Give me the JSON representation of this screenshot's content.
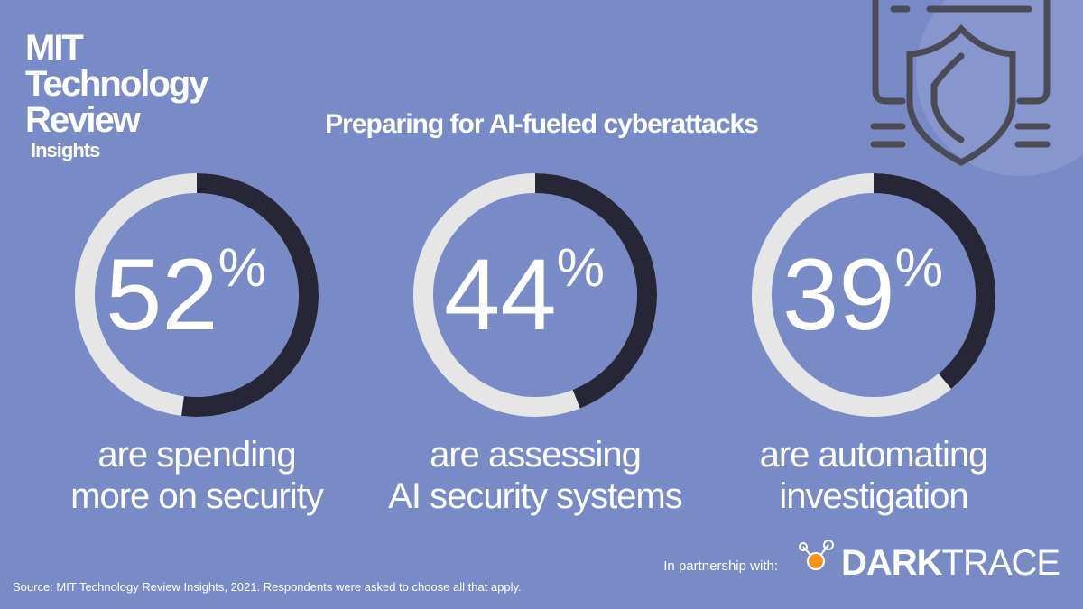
{
  "brand": {
    "lines": [
      "MIT",
      "Technology",
      "Review"
    ],
    "sub": "Insights"
  },
  "title": "Preparing for AI-fueled cyberattacks",
  "chart_data": [
    {
      "type": "donut",
      "values": [
        52
      ],
      "value_labels": [
        "52%"
      ],
      "color": "#262636",
      "track_color": "#e6e6e6",
      "caption": [
        "are spending",
        "more on security"
      ]
    },
    {
      "type": "donut",
      "values": [
        44
      ],
      "value_labels": [
        "44%"
      ],
      "color": "#262636",
      "track_color": "#e6e6e6",
      "caption": [
        "are assessing",
        "AI security systems"
      ]
    },
    {
      "type": "donut",
      "values": [
        39
      ],
      "value_labels": [
        "39%"
      ],
      "color": "#262636",
      "track_color": "#e6e6e6",
      "caption": [
        "are automating",
        "investigation"
      ]
    }
  ],
  "partner": {
    "label": "In partnership with:",
    "logo_bold": "DARK",
    "logo_light": "TRACE"
  },
  "source": "Source: MIT Technology Review Insights, 2021. Respondents were asked to choose all that apply."
}
